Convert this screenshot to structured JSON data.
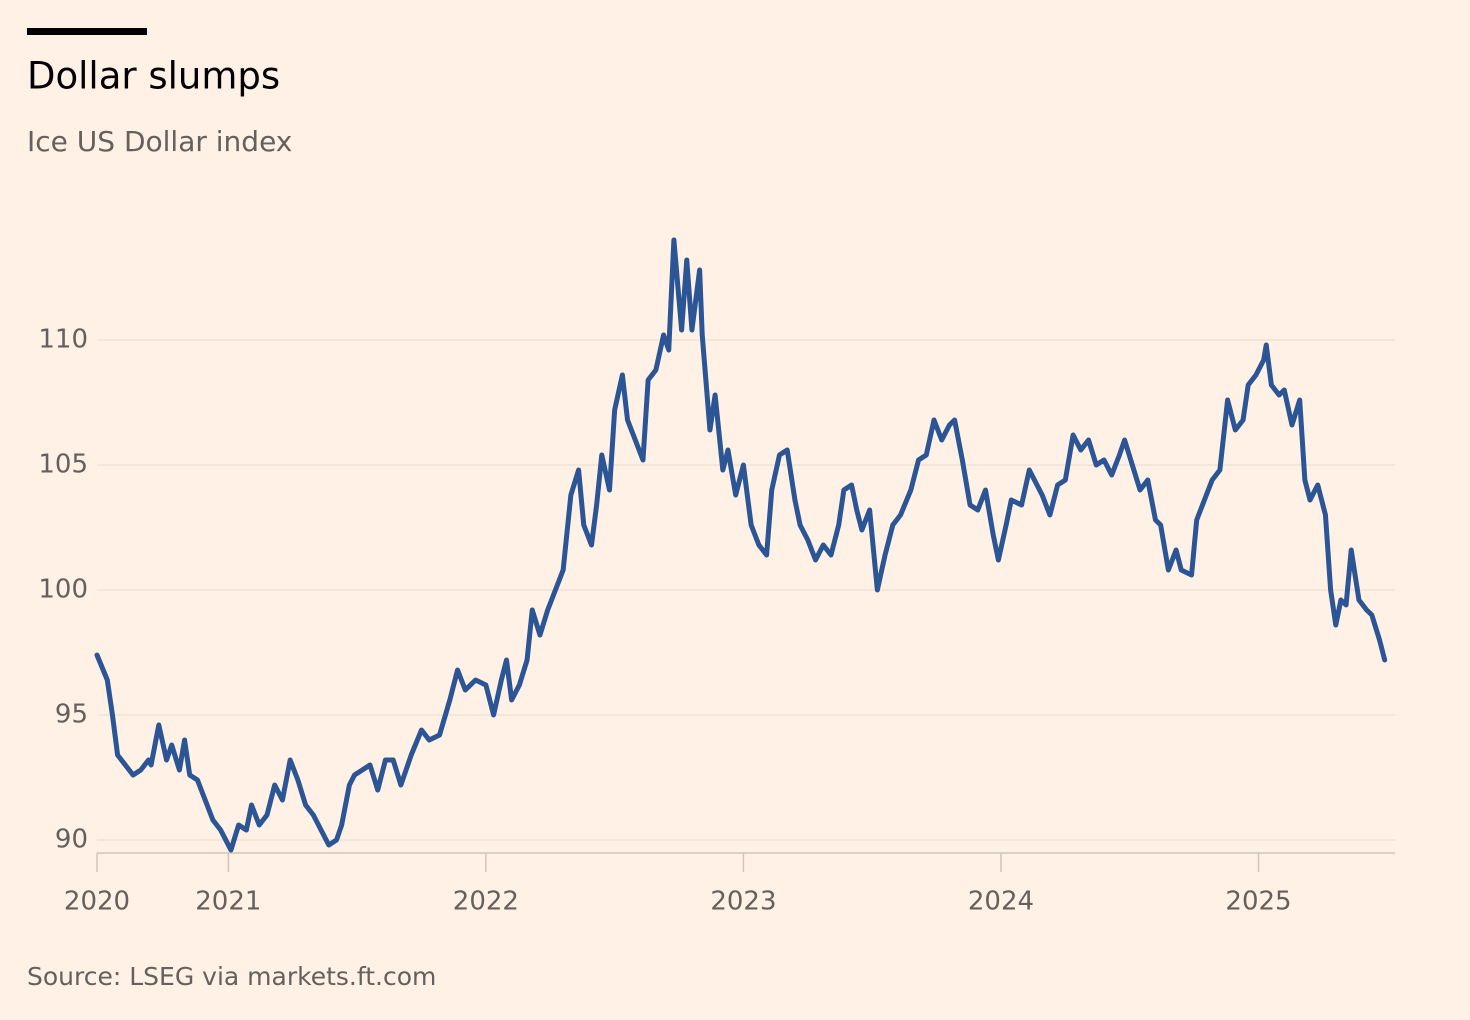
{
  "chart_data": {
    "type": "line",
    "title": "Dollar slumps",
    "subtitle": "Ice US Dollar index",
    "source": "Source: LSEG via markets.ft.com",
    "color": "#2b5595",
    "grid": true,
    "xlim": [
      2020.49,
      2025.53
    ],
    "xticks": [
      {
        "value": 2020.49,
        "label": "2020"
      },
      2021,
      2022,
      2023,
      2024,
      2025
    ],
    "ylim": [
      89.5,
      114.5
    ],
    "yticks": [
      90,
      95,
      100,
      105,
      110
    ],
    "x": [
      2020.49,
      2020.53,
      2020.55,
      2020.57,
      2020.6,
      2020.63,
      2020.66,
      2020.69,
      2020.7,
      2020.73,
      2020.76,
      2020.78,
      2020.81,
      2020.83,
      2020.85,
      2020.88,
      2020.91,
      2020.94,
      2020.97,
      2021.01,
      2021.04,
      2021.07,
      2021.09,
      2021.12,
      2021.15,
      2021.18,
      2021.21,
      2021.24,
      2021.27,
      2021.3,
      2021.33,
      2021.36,
      2021.39,
      2021.42,
      2021.44,
      2021.47,
      2021.49,
      2021.52,
      2021.55,
      2021.58,
      2021.61,
      2021.64,
      2021.67,
      2021.71,
      2021.75,
      2021.78,
      2021.82,
      2021.86,
      2021.89,
      2021.92,
      2021.96,
      2022.0,
      2022.03,
      2022.06,
      2022.08,
      2022.1,
      2022.13,
      2022.16,
      2022.18,
      2022.21,
      2022.24,
      2022.27,
      2022.3,
      2022.33,
      2022.36,
      2022.38,
      2022.41,
      2022.43,
      2022.45,
      2022.48,
      2022.5,
      2022.53,
      2022.55,
      2022.58,
      2022.61,
      2022.63,
      2022.66,
      2022.69,
      2022.71,
      2022.73,
      2022.76,
      2022.78,
      2022.8,
      2022.83,
      2022.84,
      2022.87,
      2022.89,
      2022.92,
      2022.94,
      2022.97,
      2023.0,
      2023.03,
      2023.06,
      2023.09,
      2023.11,
      2023.14,
      2023.17,
      2023.2,
      2023.22,
      2023.25,
      2023.28,
      2023.31,
      2023.34,
      2023.37,
      2023.39,
      2023.42,
      2023.44,
      2023.46,
      2023.49,
      2023.52,
      2023.55,
      2023.58,
      2023.61,
      2023.65,
      2023.68,
      2023.71,
      2023.74,
      2023.77,
      2023.8,
      2023.82,
      2023.85,
      2023.88,
      2023.91,
      2023.94,
      2023.97,
      2023.99,
      2024.02,
      2024.04,
      2024.08,
      2024.11,
      2024.13,
      2024.16,
      2024.19,
      2024.22,
      2024.25,
      2024.28,
      2024.31,
      2024.34,
      2024.37,
      2024.4,
      2024.43,
      2024.46,
      2024.48,
      2024.51,
      2024.54,
      2024.57,
      2024.6,
      2024.62,
      2024.65,
      2024.68,
      2024.7,
      2024.74,
      2024.76,
      2024.79,
      2024.82,
      2024.85,
      2024.88,
      2024.91,
      2024.94,
      2024.96,
      2024.99,
      2025.02,
      2025.03,
      2025.05,
      2025.08,
      2025.1,
      2025.13,
      2025.16,
      2025.18,
      2025.2,
      2025.23,
      2025.26,
      2025.28,
      2025.3,
      2025.32,
      2025.34,
      2025.36,
      2025.39,
      2025.42,
      2025.44,
      2025.47,
      2025.49
    ],
    "values": [
      97.4,
      96.4,
      95,
      93.4,
      93,
      92.6,
      92.8,
      93.2,
      93,
      94.6,
      93.2,
      93.8,
      92.8,
      94,
      92.6,
      92.4,
      91.6,
      90.8,
      90.4,
      89.6,
      90.6,
      90.4,
      91.4,
      90.6,
      91,
      92.2,
      91.6,
      93.2,
      92.4,
      91.4,
      91,
      90.4,
      89.8,
      90,
      90.6,
      92.2,
      92.6,
      92.8,
      93,
      92,
      93.2,
      93.2,
      92.2,
      93.4,
      94.4,
      94,
      94.2,
      95.6,
      96.8,
      96,
      96.4,
      96.2,
      95,
      96.4,
      97.2,
      95.6,
      96.2,
      97.2,
      99.2,
      98.2,
      99.2,
      100,
      100.8,
      103.8,
      104.8,
      102.6,
      101.8,
      103.4,
      105.4,
      104,
      107.2,
      108.6,
      106.8,
      106,
      105.2,
      108.4,
      108.8,
      110.2,
      109.6,
      114,
      110.4,
      113.2,
      110.4,
      112.8,
      110.2,
      106.4,
      107.8,
      104.8,
      105.6,
      103.8,
      105,
      102.6,
      101.8,
      101.4,
      104,
      105.4,
      105.6,
      103.6,
      102.6,
      102,
      101.2,
      101.8,
      101.4,
      102.6,
      104,
      104.2,
      103.2,
      102.4,
      103.2,
      100,
      101.4,
      102.6,
      103,
      104,
      105.2,
      105.4,
      106.8,
      106,
      106.6,
      106.8,
      105.2,
      103.4,
      103.2,
      104,
      102.2,
      101.2,
      102.6,
      103.6,
      103.4,
      104.8,
      104.4,
      103.8,
      103,
      104.2,
      104.4,
      106.2,
      105.6,
      106,
      105,
      105.2,
      104.6,
      105.4,
      106,
      105,
      104,
      104.4,
      102.8,
      102.6,
      100.8,
      101.6,
      100.8,
      100.6,
      102.8,
      103.6,
      104.4,
      104.8,
      107.6,
      106.4,
      106.8,
      108.2,
      108.6,
      109.2,
      109.8,
      108.2,
      107.8,
      108,
      106.6,
      107.6,
      104.4,
      103.6,
      104.2,
      103,
      100,
      98.6,
      99.6,
      99.4,
      101.6,
      99.6,
      99.2,
      99,
      98,
      97.2
    ]
  }
}
